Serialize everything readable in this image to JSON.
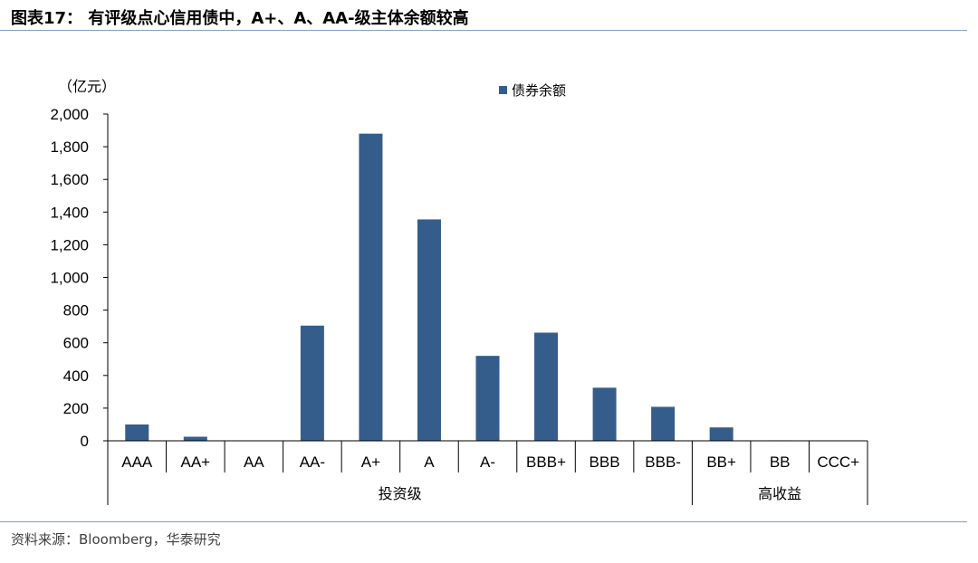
{
  "figure": {
    "title": "图表17： 有评级点心信用债中，A+、A、AA-级主体余额较高",
    "source": "资料来源：Bloomberg，华泰研究"
  },
  "chart_data": {
    "type": "bar",
    "unit_label": "（亿元）",
    "categories": [
      "AAA",
      "AA+",
      "AA",
      "AA-",
      "A+",
      "A",
      "A-",
      "BBB+",
      "BBB",
      "BBB-",
      "BB+",
      "BB",
      "CCC+"
    ],
    "series": [
      {
        "name": "债券余额",
        "color": "#355d8c",
        "values": [
          100,
          25,
          0,
          705,
          1880,
          1355,
          520,
          662,
          325,
          208,
          82,
          3,
          0
        ]
      }
    ],
    "groups": [
      {
        "label": "投资级",
        "start": 0,
        "end": 9
      },
      {
        "label": "高收益",
        "start": 10,
        "end": 12
      }
    ],
    "ylim": [
      0,
      2000
    ],
    "yticks": [
      0,
      200,
      400,
      600,
      800,
      1000,
      1200,
      1400,
      1600,
      1800,
      2000
    ],
    "ytick_labels": [
      "0",
      "200",
      "400",
      "600",
      "800",
      "1,000",
      "1,200",
      "1,400",
      "1,600",
      "1,800",
      "2,000"
    ],
    "grid": false,
    "legend_position": "top-center"
  }
}
